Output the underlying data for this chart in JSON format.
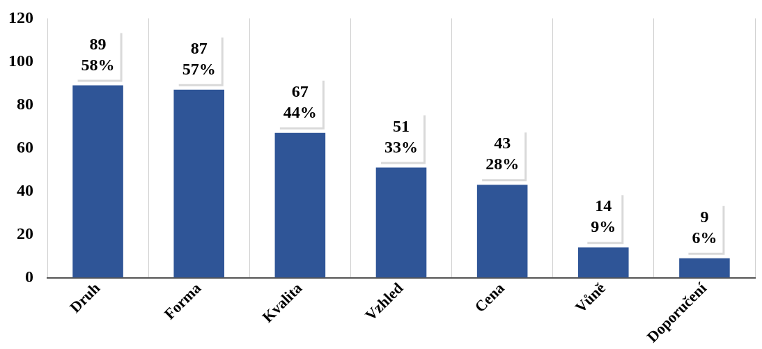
{
  "chart_data": {
    "type": "bar",
    "categories": [
      "Druh",
      "Forma",
      "Kvalita",
      "Vzhled",
      "Cena",
      "Vůně",
      "Doporučení"
    ],
    "values": [
      89,
      87,
      67,
      51,
      43,
      14,
      9
    ],
    "value_labels": [
      "89\n58%",
      "87\n57%",
      "67\n44%",
      "51\n33%",
      "43\n28%",
      "14\n9%",
      "9\n6%"
    ],
    "color": "#2f5597",
    "ylim": [
      0,
      120
    ],
    "yticks": [
      0,
      20,
      40,
      60,
      80,
      100,
      120
    ],
    "grid": "x",
    "legend": false
  }
}
